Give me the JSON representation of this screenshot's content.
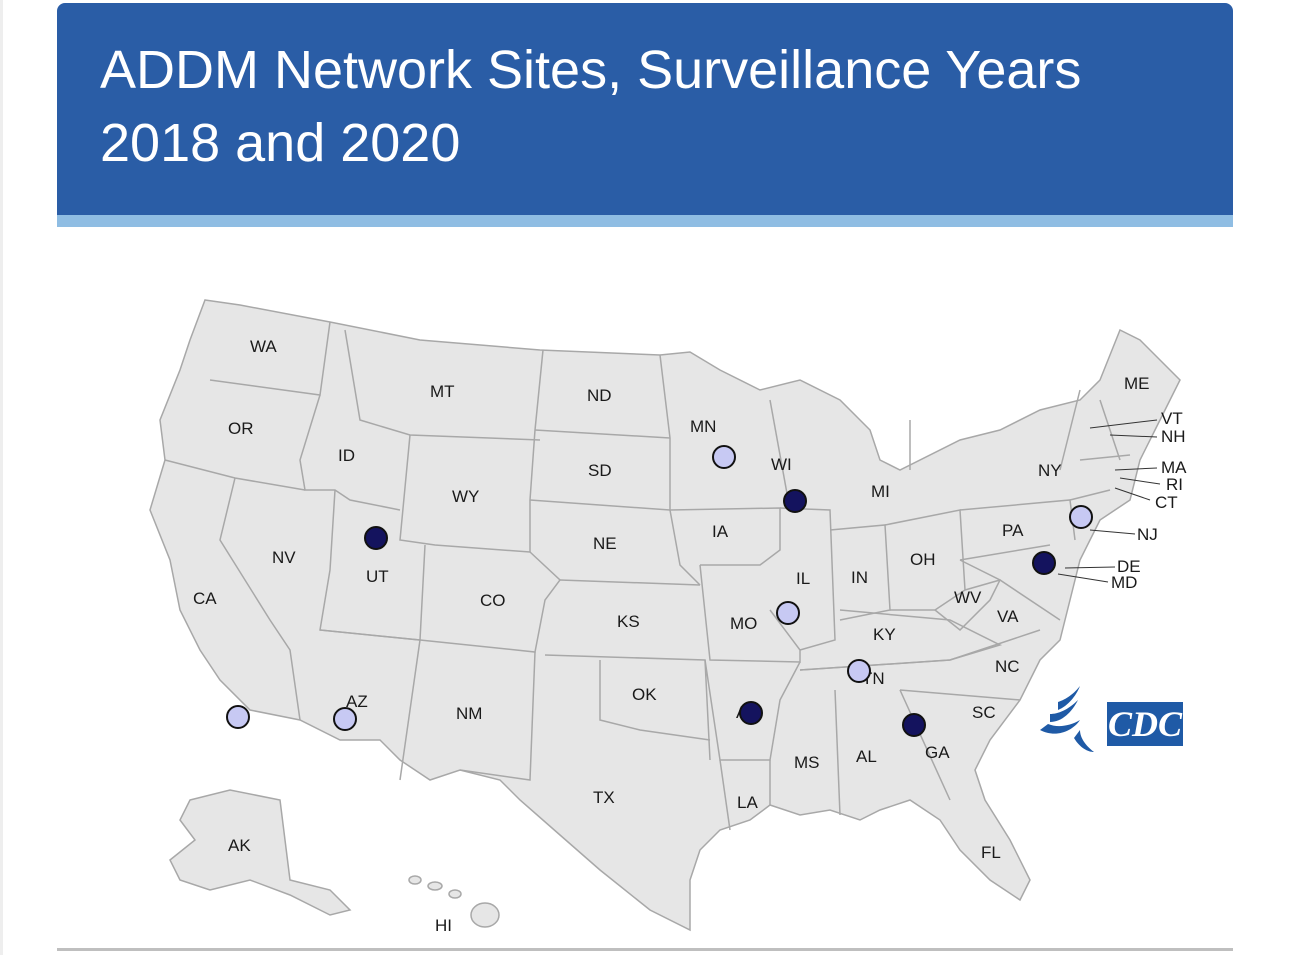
{
  "header": {
    "title_line1": "ADDM Network Sites, Surveillance Years",
    "title_line2": "2018 and 2020",
    "bg_color": "#2a5da6",
    "stripe_color": "#8fbde3"
  },
  "map": {
    "state_fill": "#e6e6e6",
    "state_stroke": "#a8a8a8",
    "states": [
      "WA",
      "OR",
      "CA",
      "ID",
      "NV",
      "MT",
      "WY",
      "UT",
      "AZ",
      "CO",
      "NM",
      "ND",
      "SD",
      "NE",
      "KS",
      "OK",
      "TX",
      "MN",
      "IA",
      "MO",
      "AR",
      "LA",
      "WI",
      "IL",
      "MI",
      "IN",
      "OH",
      "KY",
      "TN",
      "MS",
      "AL",
      "GA",
      "FL",
      "SC",
      "NC",
      "VA",
      "WV",
      "PA",
      "NY",
      "ME",
      "VT",
      "NH",
      "MA",
      "RI",
      "CT",
      "NJ",
      "DE",
      "MD",
      "AK",
      "HI"
    ],
    "sites": [
      {
        "state": "MN",
        "type": "light"
      },
      {
        "state": "WI",
        "type": "dark"
      },
      {
        "state": "UT",
        "type": "dark"
      },
      {
        "state": "MO",
        "type": "light"
      },
      {
        "state": "TN",
        "type": "light"
      },
      {
        "state": "AR",
        "type": "dark"
      },
      {
        "state": "GA",
        "type": "dark"
      },
      {
        "state": "CA",
        "type": "light"
      },
      {
        "state": "AZ",
        "type": "light"
      },
      {
        "state": "NJ",
        "type": "light"
      },
      {
        "state": "MD",
        "type": "dark"
      }
    ],
    "marker_colors": {
      "dark": "#14135e",
      "light": "#c7c9f3",
      "outline": "#111111"
    }
  },
  "logo": {
    "text": "CDC",
    "color": "#1f5aa6",
    "icon": "hhs-eagle-icon"
  }
}
